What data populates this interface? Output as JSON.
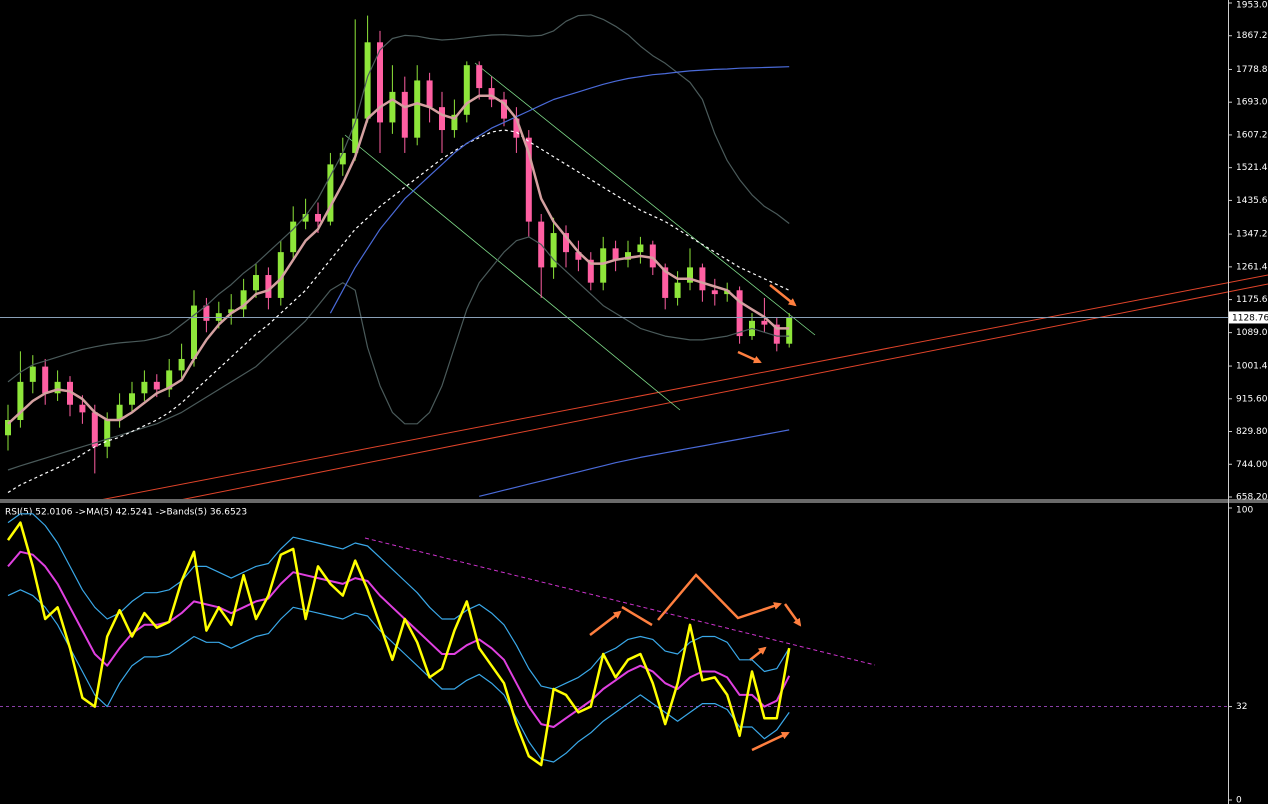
{
  "chart_data": [
    {
      "type": "candlestick",
      "ylim": [
        658.2,
        1953.0
      ],
      "yticks": [
        {
          "value": 658.2,
          "label": "658.20"
        },
        {
          "value": 744.0,
          "label": "744.00"
        },
        {
          "value": 829.8,
          "label": "829.80"
        },
        {
          "value": 915.6,
          "label": "915.60"
        },
        {
          "value": 1001.4,
          "label": "1001.40"
        },
        {
          "value": 1089.0,
          "label": "1089.00"
        },
        {
          "value": 1175.6,
          "label": "1175.60"
        },
        {
          "value": 1261.4,
          "label": "1261.40"
        },
        {
          "value": 1347.2,
          "label": "1347.20"
        },
        {
          "value": 1435.6,
          "label": "1435.60"
        },
        {
          "value": 1521.4,
          "label": "1521.40"
        },
        {
          "value": 1607.2,
          "label": "1607.20"
        },
        {
          "value": 1693.0,
          "label": "1693.00"
        },
        {
          "value": 1778.8,
          "label": "1778.80"
        },
        {
          "value": 1867.2,
          "label": "1867.20"
        },
        {
          "value": 1953.0,
          "label": "1953.00"
        }
      ],
      "up_color": "#8ee63a",
      "down_color": "#ff5fa2",
      "last_price_line": true,
      "open": [
        820,
        860,
        960,
        1000,
        930,
        960,
        900,
        880,
        790,
        860,
        900,
        930,
        960,
        940,
        990,
        1020,
        1160,
        1120,
        1140,
        1150,
        1200,
        1240,
        1180,
        1300,
        1380,
        1400,
        1380,
        1530,
        1560,
        1650,
        1850,
        1640,
        1720,
        1600,
        1750,
        1680,
        1620,
        1660,
        1790,
        1730,
        1700,
        1650,
        1600,
        1380,
        1260,
        1350,
        1300,
        1280,
        1220,
        1310,
        1280,
        1300,
        1320,
        1260,
        1180,
        1220,
        1260,
        1200,
        1190,
        1200,
        1080,
        1120,
        1110,
        1060
      ],
      "high": [
        900,
        1040,
        1030,
        1020,
        990,
        975,
        925,
        900,
        880,
        930,
        960,
        990,
        980,
        1020,
        1060,
        1200,
        1180,
        1170,
        1190,
        1230,
        1270,
        1260,
        1330,
        1420,
        1440,
        1430,
        1560,
        1600,
        1910,
        1920,
        1880,
        1790,
        1760,
        1790,
        1770,
        1720,
        1700,
        1800,
        1800,
        1760,
        1720,
        1680,
        1620,
        1400,
        1390,
        1370,
        1330,
        1300,
        1340,
        1330,
        1330,
        1340,
        1330,
        1270,
        1250,
        1310,
        1270,
        1230,
        1220,
        1210,
        1140,
        1180,
        1130,
        1140
      ],
      "low": [
        780,
        840,
        930,
        900,
        910,
        870,
        850,
        720,
        760,
        840,
        880,
        910,
        920,
        920,
        970,
        1000,
        1090,
        1100,
        1110,
        1130,
        1180,
        1150,
        1160,
        1280,
        1360,
        1350,
        1370,
        1500,
        1540,
        1640,
        1560,
        1610,
        1560,
        1580,
        1640,
        1560,
        1600,
        1640,
        1700,
        1680,
        1630,
        1560,
        1340,
        1180,
        1230,
        1260,
        1250,
        1200,
        1200,
        1250,
        1260,
        1270,
        1240,
        1150,
        1160,
        1200,
        1170,
        1160,
        1170,
        1060,
        1070,
        1090,
        1040,
        1050
      ],
      "close": [
        860,
        960,
        1000,
        930,
        960,
        900,
        880,
        790,
        860,
        900,
        930,
        960,
        940,
        990,
        1020,
        1160,
        1120,
        1140,
        1150,
        1200,
        1240,
        1180,
        1300,
        1380,
        1400,
        1380,
        1530,
        1560,
        1650,
        1850,
        1640,
        1720,
        1600,
        1750,
        1680,
        1620,
        1660,
        1790,
        1730,
        1700,
        1650,
        1600,
        1380,
        1260,
        1350,
        1300,
        1280,
        1220,
        1310,
        1280,
        1300,
        1320,
        1260,
        1180,
        1220,
        1260,
        1200,
        1190,
        1200,
        1080,
        1120,
        1110,
        1060,
        1128.76
      ],
      "series": [
        {
          "color": "#4a5a5a",
          "values": [
            960,
            985,
            1005,
            1015,
            1025,
            1035,
            1045,
            1052,
            1058,
            1062,
            1065,
            1068,
            1075,
            1085,
            1110,
            1135,
            1160,
            1190,
            1215,
            1245,
            1270,
            1300,
            1330,
            1360,
            1395,
            1440,
            1500,
            1560,
            1640,
            1760,
            1830,
            1860,
            1868,
            1866,
            1860,
            1856,
            1858,
            1862,
            1866,
            1869,
            1870,
            1868,
            1866,
            1868,
            1880,
            1905,
            1920,
            1922,
            1910,
            1892,
            1870,
            1840,
            1815,
            1795,
            1770,
            1745,
            1700,
            1610,
            1540,
            1490,
            1450,
            1420,
            1400,
            1375
          ]
        },
        {
          "color": "#4a5a5a",
          "values": [
            729,
            740,
            750,
            760,
            770,
            780,
            790,
            800,
            810,
            820,
            830,
            840,
            850,
            865,
            880,
            900,
            920,
            940,
            960,
            980,
            1000,
            1030,
            1060,
            1090,
            1120,
            1160,
            1200,
            1220,
            1200,
            1050,
            950,
            880,
            850,
            850,
            880,
            950,
            1050,
            1150,
            1220,
            1260,
            1300,
            1330,
            1340,
            1320,
            1280,
            1250,
            1220,
            1190,
            1160,
            1140,
            1120,
            1100,
            1090,
            1080,
            1075,
            1070,
            1070,
            1075,
            1080,
            1090,
            1100,
            1090,
            1080,
            1080
          ]
        },
        {
          "color": "#ffffff",
          "style": "dashed",
          "values": [
            670,
            690,
            705,
            720,
            735,
            750,
            770,
            790,
            805,
            815,
            830,
            845,
            860,
            880,
            905,
            935,
            965,
            995,
            1025,
            1055,
            1085,
            1110,
            1140,
            1170,
            1200,
            1240,
            1280,
            1320,
            1360,
            1390,
            1420,
            1445,
            1470,
            1495,
            1520,
            1545,
            1565,
            1585,
            1600,
            1615,
            1620,
            1615,
            1590,
            1570,
            1550,
            1530,
            1510,
            1490,
            1470,
            1450,
            1430,
            1410,
            1395,
            1380,
            1360,
            1340,
            1320,
            1300,
            1280,
            1260,
            1245,
            1230,
            1215,
            1200
          ]
        },
        {
          "color": "#4a6ad8",
          "values": [
            null,
            null,
            null,
            null,
            null,
            null,
            null,
            null,
            null,
            null,
            null,
            null,
            null,
            null,
            null,
            null,
            null,
            null,
            null,
            null,
            null,
            null,
            null,
            null,
            null,
            null,
            1140,
            1200,
            1260,
            1310,
            1360,
            1400,
            1440,
            1470,
            1500,
            1530,
            1560,
            1585,
            1605,
            1625,
            1640,
            1655,
            1670,
            1685,
            1700,
            1710,
            1720,
            1730,
            1740,
            1748,
            1755,
            1760,
            1765,
            1768,
            1772,
            1775,
            1777,
            1779,
            1780,
            1782,
            1783,
            1784,
            1785,
            1786
          ]
        },
        {
          "color": "#4a6ad8",
          "values": [
            null,
            null,
            null,
            null,
            null,
            null,
            null,
            null,
            null,
            null,
            null,
            null,
            null,
            null,
            null,
            null,
            null,
            null,
            null,
            null,
            null,
            null,
            null,
            null,
            null,
            null,
            null,
            null,
            null,
            null,
            null,
            null,
            null,
            null,
            null,
            null,
            null,
            null,
            660,
            668,
            676,
            684,
            692,
            700,
            708,
            716,
            724,
            732,
            740,
            748,
            755,
            762,
            768,
            774,
            780,
            786,
            792,
            798,
            804,
            810,
            816,
            822,
            828,
            834
          ]
        },
        {
          "color": "#d4a0a0",
          "width": 2.5,
          "values": [
            850,
            880,
            910,
            930,
            940,
            935,
            915,
            880,
            860,
            860,
            880,
            905,
            930,
            945,
            965,
            1020,
            1070,
            1110,
            1140,
            1160,
            1190,
            1200,
            1230,
            1280,
            1330,
            1360,
            1420,
            1480,
            1550,
            1650,
            1680,
            1700,
            1680,
            1690,
            1680,
            1660,
            1650,
            1690,
            1710,
            1710,
            1690,
            1650,
            1560,
            1440,
            1380,
            1340,
            1300,
            1270,
            1270,
            1280,
            1285,
            1290,
            1285,
            1250,
            1230,
            1230,
            1220,
            1210,
            1200,
            1170,
            1150,
            1130,
            1100,
            1100
          ]
        }
      ]
    },
    {
      "type": "line",
      "title": "RSI(5) 52.0106  ->MA(5) 42.5241  ->Bands(5) 36.6523",
      "ylim": [
        0,
        100
      ],
      "yticks": [
        0,
        32,
        100
      ],
      "grid": true,
      "grid_style": "dashed",
      "grid_color": "#8a3fa8",
      "series": [
        {
          "color": "#3aa8e8",
          "values": [
            95,
            98,
            98,
            94,
            88,
            80,
            72,
            66,
            62,
            64,
            68,
            71,
            71,
            72,
            75,
            80,
            80,
            78,
            76,
            78,
            80,
            81,
            86,
            90,
            89,
            88,
            87,
            86,
            88,
            87,
            83,
            79,
            75,
            71,
            66,
            62,
            62,
            65,
            67,
            64,
            60,
            53,
            45,
            39,
            38,
            40,
            42,
            45,
            50,
            52,
            55,
            56,
            55,
            51,
            50,
            54,
            56,
            56,
            54,
            48,
            48,
            44,
            45,
            52
          ]
        },
        {
          "color": "#3aa8e8",
          "values": [
            70,
            72,
            70,
            66,
            60,
            52,
            44,
            36,
            32,
            40,
            46,
            49,
            49,
            50,
            53,
            56,
            54,
            54,
            52,
            54,
            56,
            57,
            62,
            66,
            65,
            64,
            63,
            62,
            64,
            63,
            58,
            54,
            50,
            46,
            42,
            38,
            38,
            41,
            43,
            40,
            36,
            28,
            20,
            14,
            13,
            16,
            20,
            23,
            27,
            30,
            33,
            36,
            33,
            30,
            27,
            30,
            33,
            33,
            31,
            25,
            25,
            21,
            24,
            30
          ]
        },
        {
          "color": "#e040e0",
          "width": 2,
          "values": [
            80,
            85,
            84,
            80,
            74,
            66,
            58,
            50,
            46,
            52,
            57,
            60,
            60,
            61,
            64,
            68,
            67,
            66,
            64,
            66,
            68,
            69,
            74,
            78,
            77,
            76,
            75,
            74,
            76,
            75,
            70,
            66,
            62,
            58,
            54,
            50,
            50,
            53,
            55,
            52,
            48,
            40,
            32,
            26,
            25,
            28,
            31,
            34,
            38,
            41,
            44,
            46,
            44,
            40,
            38,
            42,
            44,
            44,
            42,
            36,
            36,
            32,
            34,
            42.5241
          ]
        },
        {
          "color": "#ffff00",
          "width": 2.5,
          "values": [
            89,
            95,
            80,
            62,
            66,
            52,
            35,
            32,
            56,
            65,
            56,
            64,
            59,
            61,
            75,
            85,
            58,
            66,
            60,
            77,
            62,
            70,
            84,
            86,
            62,
            80,
            74,
            70,
            82,
            72,
            60,
            48,
            62,
            54,
            42,
            45,
            58,
            68,
            52,
            46,
            40,
            26,
            15,
            12,
            38,
            36,
            30,
            32,
            50,
            42,
            48,
            50,
            40,
            26,
            40,
            60,
            41,
            42,
            36,
            22,
            44,
            28,
            28,
            52.0106
          ]
        }
      ]
    }
  ]
}
